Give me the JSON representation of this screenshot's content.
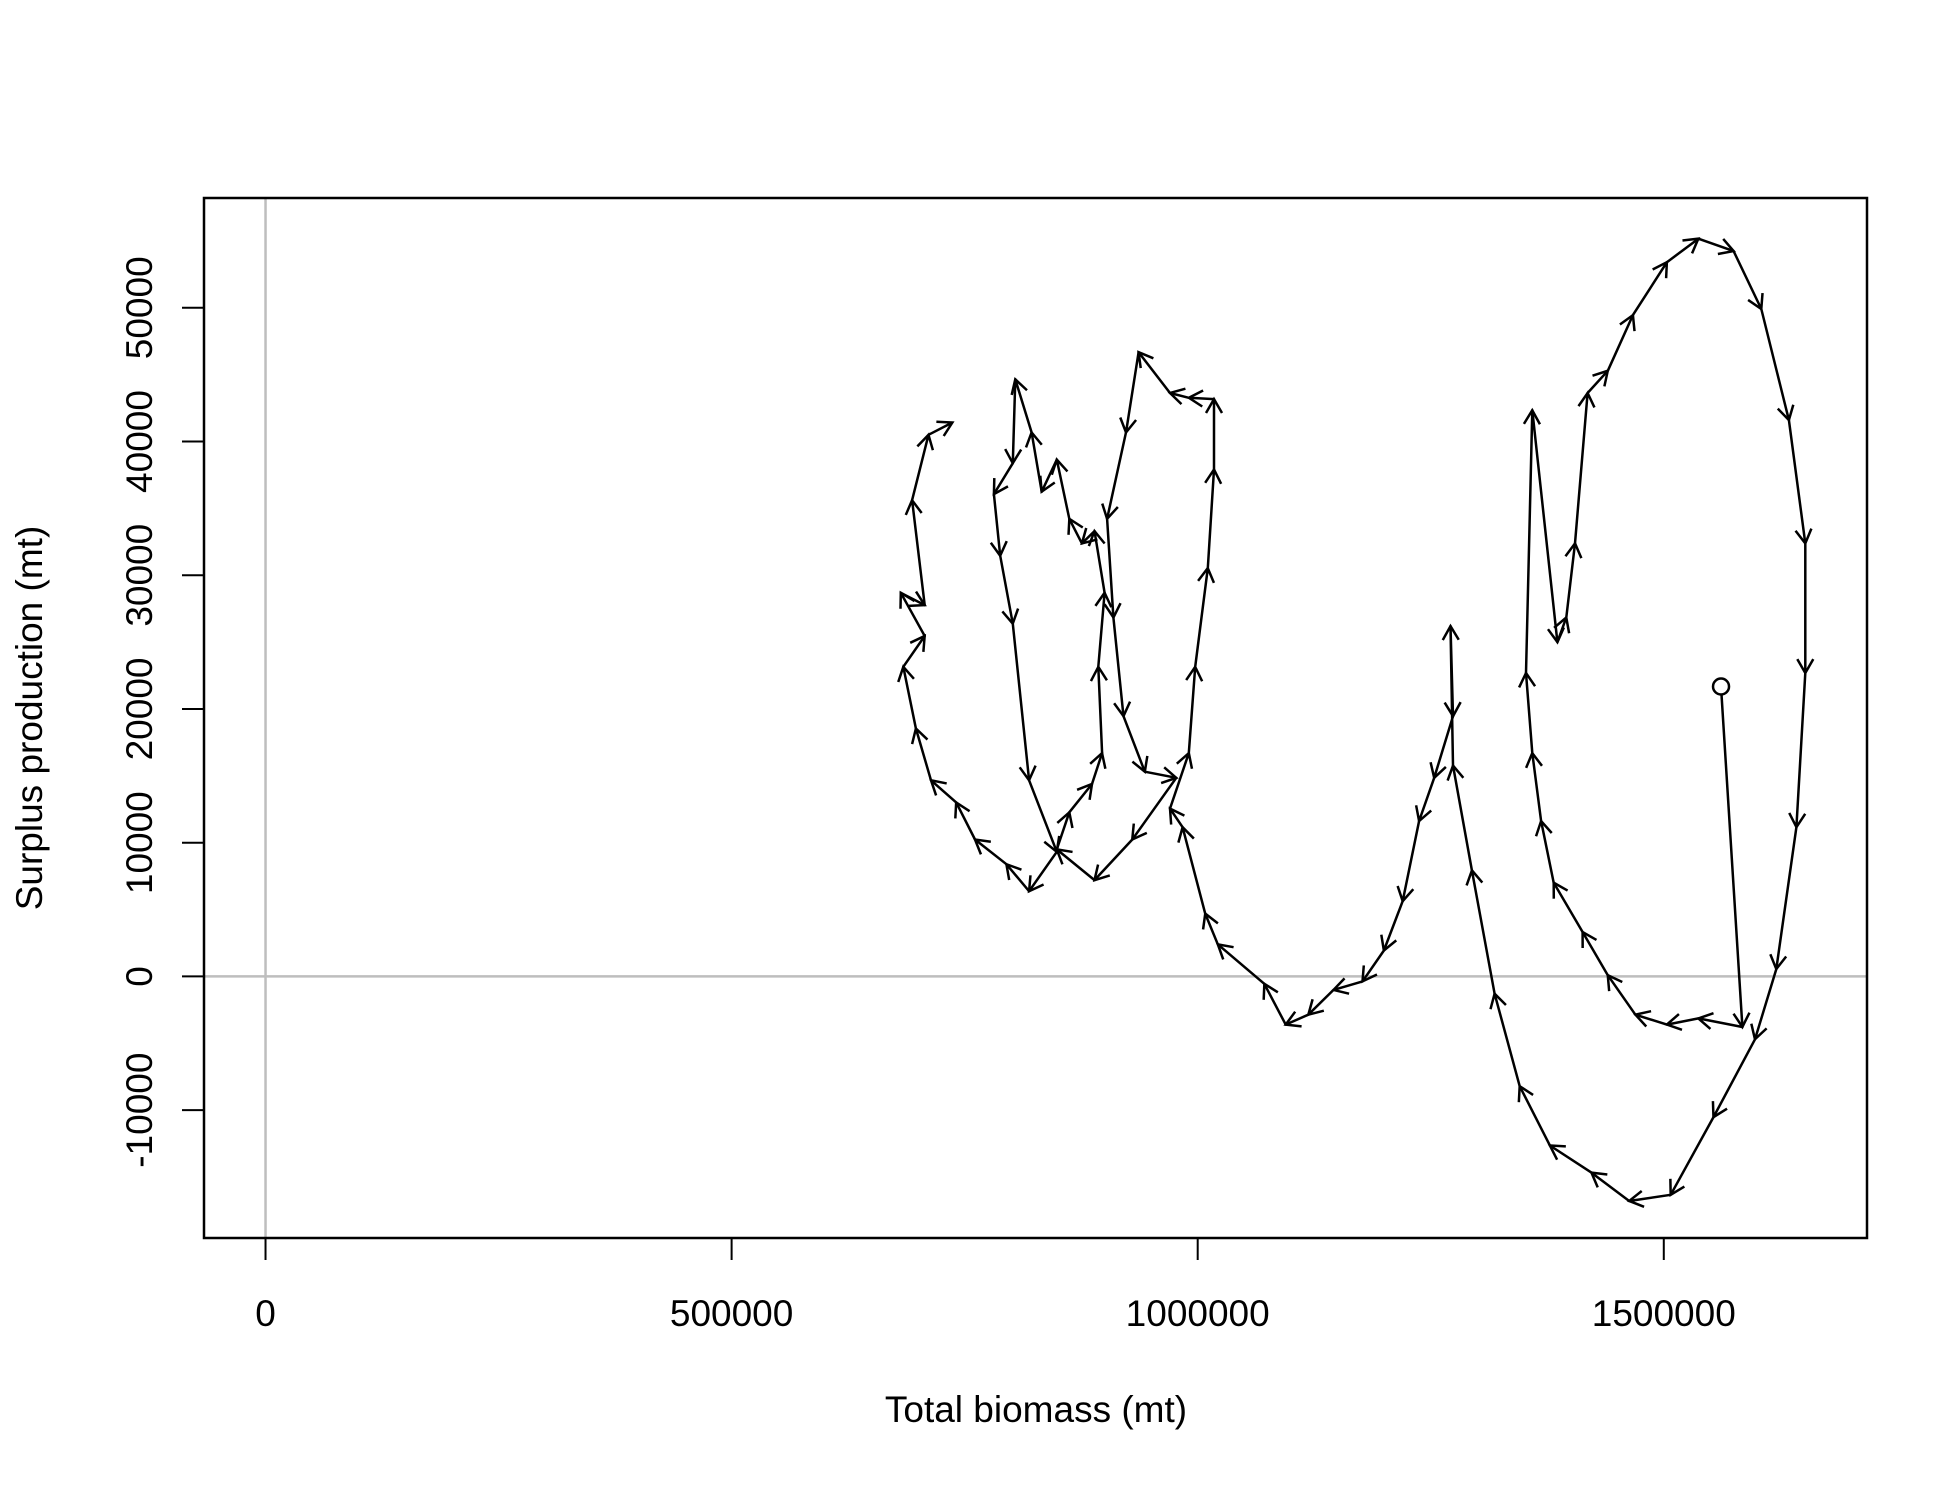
{
  "chart_data": {
    "type": "arrow-path",
    "xlabel": "Total biomass (mt)",
    "ylabel": "Surplus production (mt)",
    "xlim": [
      -66000,
      1718000
    ],
    "ylim": [
      -19560,
      58210
    ],
    "xticks": [
      0,
      500000,
      1000000,
      1500000
    ],
    "yticks": [
      -10000,
      0,
      10000,
      20000,
      30000,
      40000,
      50000
    ],
    "reference_lines": {
      "x": 0,
      "y": 0,
      "color": "#bebebe"
    },
    "color": "#000000",
    "arrows": true,
    "start_marker": "circle",
    "x": [
      1561400,
      1584300,
      1537100,
      1503300,
      1469600,
      1439900,
      1412900,
      1381900,
      1368400,
      1358900,
      1352200,
      1358900,
      1385900,
      1395400,
      1404800,
      1418300,
      1439900,
      1466900,
      1503300,
      1537100,
      1574900,
      1604600,
      1634200,
      1651800,
      1651800,
      1642300,
      1620700,
      1597800,
      1553300,
      1507400,
      1462900,
      1422400,
      1377800,
      1345400,
      1318500,
      1294200,
      1273900,
      1271200,
      1273900,
      1253700,
      1237500,
      1219900,
      1199700,
      1176800,
      1145700,
      1118700,
      1094400,
      1071500,
      1021600,
      1008100,
      983800,
      970300,
      990500,
      997300,
      1010800,
      1017500,
      1017500,
      990500,
      970300,
      936600,
      923100,
      902800,
      909600,
      920400,
      943300,
      977000,
      929800,
      889300,
      848800,
      862300,
      886600,
      897400,
      893400,
      900100,
      889300,
      875800,
      862300,
      848800,
      832600,
      821800,
      804300,
      801600,
      781400,
      788100,
      801600,
      819100,
      848800,
      819100,
      794800,
      761100,
      740900,
      713900,
      697700,
      684200,
      707100,
      681500,
      707100,
      693600,
      711200,
      736800
    ],
    "values": [
      21680,
      -3780,
      -3140,
      -3600,
      -2860,
      90,
      3320,
      7010,
      11620,
      16700,
      22690,
      42340,
      25000,
      26840,
      32380,
      43630,
      45290,
      49450,
      53410,
      55170,
      54240,
      49910,
      41600,
      32380,
      22690,
      11160,
      550,
      -4700,
      -10520,
      -16330,
      -16790,
      -14670,
      -12640,
      -8210,
      -1290,
      7930,
      15770,
      26200,
      19460,
      14850,
      11620,
      5630,
      1940,
      -370,
      -1010,
      -2860,
      -3600,
      -550,
      2400,
      4700,
      11160,
      12550,
      16700,
      23150,
      30530,
      37910,
      43170,
      43270,
      43630,
      46680,
      40680,
      34220,
      26840,
      19460,
      15310,
      14850,
      10240,
      7200,
      9500,
      12270,
      14390,
      16700,
      23150,
      28690,
      33300,
      32380,
      34220,
      38650,
      36250,
      40680,
      44650,
      38380,
      36070,
      31460,
      26380,
      14670,
      9320,
      6370,
      8390,
      10240,
      13010,
      14670,
      18540,
      23150,
      25460,
      28690,
      27770,
      35610,
      40500,
      41420
    ]
  }
}
